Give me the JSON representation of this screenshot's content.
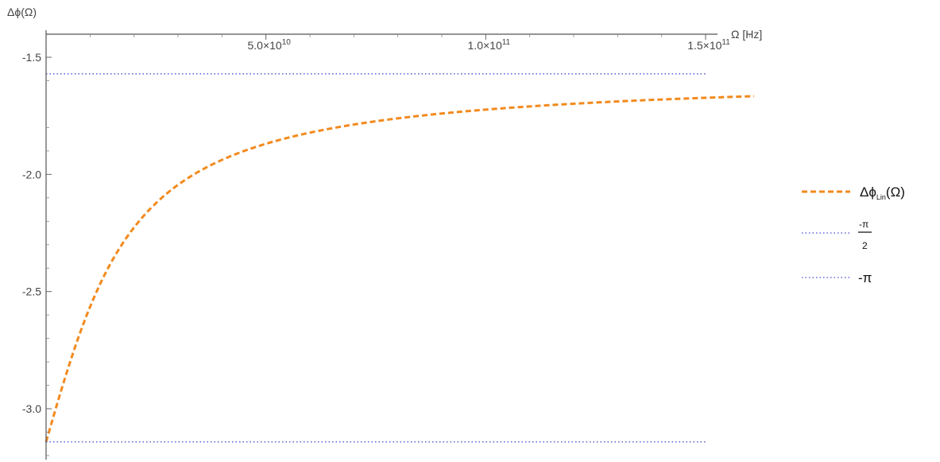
{
  "chart_data": {
    "type": "line",
    "xlabel": "Ω [Hz]",
    "ylabel": "Δϕ(Ω)",
    "xlim": [
      0,
      165000000000
    ],
    "ylim": [
      -3.2,
      -1.43
    ],
    "x_ticks": [
      {
        "value": 50000000000,
        "mantissa": "5.0",
        "exponent": "10"
      },
      {
        "value": 100000000000,
        "mantissa": "1.0",
        "exponent": "11"
      },
      {
        "value": 150000000000,
        "mantissa": "1.5",
        "exponent": "11"
      }
    ],
    "y_ticks": [
      {
        "value": -1.5,
        "label": "-1.5"
      },
      {
        "value": -2.0,
        "label": "-2.0"
      },
      {
        "value": -2.5,
        "label": "-2.5"
      },
      {
        "value": -3.0,
        "label": "-3.0"
      }
    ],
    "grid": false,
    "legend_position": "right",
    "series": [
      {
        "name": "Δϕ_Lin(Ω)",
        "style": "dashed",
        "color": "#F28A1E",
        "function": "atan(1/(Ω·τ)) − π",
        "tau_seconds": 6.5e-11,
        "x_range": [
          0,
          161000000000
        ]
      },
      {
        "name": "-π/2",
        "style": "dotted",
        "color": "#6666DD",
        "constant": -1.5708
      },
      {
        "name": "-π",
        "style": "dotted",
        "color": "#6666DD",
        "constant": -3.14159
      }
    ],
    "legend": {
      "entry1_main": "Δϕ",
      "entry1_sub": "Lin",
      "entry1_tail": "(Ω)",
      "entry2_num": "-π",
      "entry2_den": "2",
      "entry3": "-π"
    }
  }
}
